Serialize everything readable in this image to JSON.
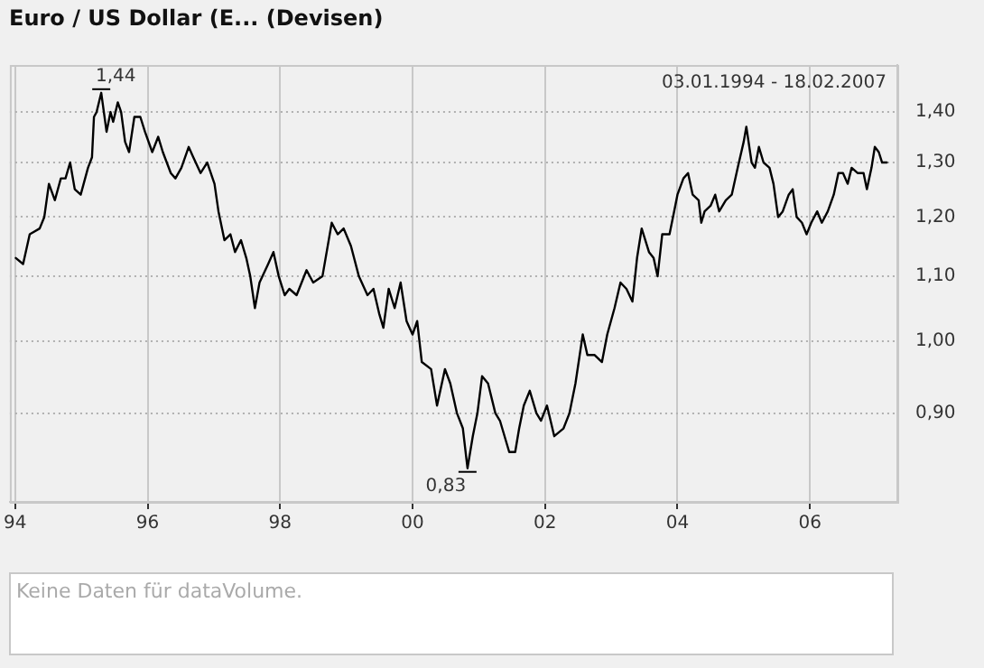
{
  "chart_data": {
    "type": "line",
    "title": "Euro / US Dollar (E... (Devisen)",
    "log": "y",
    "grid": true,
    "legend": false,
    "marker": "none",
    "line_style": "solid",
    "xlim": [
      1993.92,
      2007.32
    ],
    "xticks": [
      {
        "value": 1994,
        "label": "94"
      },
      {
        "value": 1996,
        "label": "96"
      },
      {
        "value": 1998,
        "label": "98"
      },
      {
        "value": 2000,
        "label": "00"
      },
      {
        "value": 2002,
        "label": "02"
      },
      {
        "value": 2004,
        "label": "04"
      },
      {
        "value": 2006,
        "label": "06"
      }
    ],
    "ylim": [
      0.79,
      1.5
    ],
    "yticks": [
      {
        "value": 0.9,
        "label": "0,90"
      },
      {
        "value": 1.0,
        "label": "1,00"
      },
      {
        "value": 1.1,
        "label": "1,10"
      },
      {
        "value": 1.2,
        "label": "1,20"
      },
      {
        "value": 1.3,
        "label": "1,30"
      },
      {
        "value": 1.4,
        "label": "1,40"
      }
    ],
    "series": [
      {
        "color": "#000000",
        "x": [
          1994.01,
          1994.12,
          1994.22,
          1994.37,
          1994.44,
          1994.51,
          1994.6,
          1994.69,
          1994.76,
          1994.83,
          1994.9,
          1994.99,
          1995.1,
          1995.16,
          1995.19,
          1995.23,
          1995.3,
          1995.38,
          1995.44,
          1995.48,
          1995.55,
          1995.6,
          1995.66,
          1995.72,
          1995.8,
          1995.89,
          1995.96,
          1996.07,
          1996.16,
          1996.23,
          1996.35,
          1996.42,
          1996.51,
          1996.62,
          1996.69,
          1996.8,
          1996.9,
          1997.01,
          1997.07,
          1997.16,
          1997.25,
          1997.32,
          1997.41,
          1997.49,
          1997.55,
          1997.62,
          1997.69,
          1997.82,
          1997.9,
          1997.98,
          1998.07,
          1998.14,
          1998.25,
          1998.4,
          1998.5,
          1998.64,
          1998.78,
          1998.87,
          1998.96,
          1999.07,
          1999.19,
          1999.32,
          1999.41,
          1999.5,
          1999.56,
          1999.64,
          1999.73,
          1999.82,
          1999.91,
          2000.0,
          2000.07,
          2000.14,
          2000.28,
          2000.37,
          2000.49,
          2000.57,
          2000.67,
          2000.76,
          2000.83,
          2000.91,
          2000.98,
          2001.05,
          2001.14,
          2001.25,
          2001.32,
          2001.46,
          2001.55,
          2001.61,
          2001.68,
          2001.77,
          2001.87,
          2001.94,
          2002.03,
          2002.14,
          2002.28,
          2002.37,
          2002.46,
          2002.57,
          2002.64,
          2002.75,
          2002.86,
          2002.94,
          2003.05,
          2003.14,
          2003.23,
          2003.32,
          2003.39,
          2003.46,
          2003.57,
          2003.64,
          2003.7,
          2003.77,
          2003.88,
          2003.95,
          2004.0,
          2004.09,
          2004.16,
          2004.23,
          2004.32,
          2004.36,
          2004.41,
          2004.5,
          2004.57,
          2004.63,
          2004.73,
          2004.82,
          2004.91,
          2005.0,
          2005.04,
          2005.12,
          2005.17,
          2005.23,
          2005.3,
          2005.39,
          2005.45,
          2005.52,
          2005.59,
          2005.68,
          2005.74,
          2005.8,
          2005.88,
          2005.95,
          2006.02,
          2006.11,
          2006.18,
          2006.27,
          2006.36,
          2006.43,
          2006.5,
          2006.57,
          2006.63,
          2006.72,
          2006.81,
          2006.86,
          2006.93,
          2006.98,
          2007.04,
          2007.09,
          2007.16
        ],
        "values": [
          1.13,
          1.12,
          1.17,
          1.18,
          1.2,
          1.26,
          1.23,
          1.27,
          1.27,
          1.3,
          1.25,
          1.24,
          1.29,
          1.31,
          1.39,
          1.4,
          1.44,
          1.36,
          1.4,
          1.38,
          1.42,
          1.4,
          1.34,
          1.32,
          1.39,
          1.39,
          1.36,
          1.32,
          1.35,
          1.32,
          1.28,
          1.27,
          1.29,
          1.33,
          1.31,
          1.28,
          1.3,
          1.26,
          1.21,
          1.16,
          1.17,
          1.14,
          1.16,
          1.13,
          1.1,
          1.05,
          1.09,
          1.12,
          1.14,
          1.1,
          1.07,
          1.08,
          1.07,
          1.11,
          1.09,
          1.1,
          1.19,
          1.17,
          1.18,
          1.15,
          1.1,
          1.07,
          1.08,
          1.04,
          1.02,
          1.08,
          1.05,
          1.09,
          1.03,
          1.01,
          1.03,
          0.97,
          0.96,
          0.91,
          0.96,
          0.94,
          0.9,
          0.88,
          0.83,
          0.87,
          0.9,
          0.95,
          0.94,
          0.9,
          0.89,
          0.85,
          0.85,
          0.88,
          0.91,
          0.93,
          0.9,
          0.89,
          0.91,
          0.87,
          0.88,
          0.9,
          0.94,
          1.01,
          0.98,
          0.98,
          0.97,
          1.01,
          1.05,
          1.09,
          1.08,
          1.06,
          1.13,
          1.18,
          1.14,
          1.13,
          1.1,
          1.17,
          1.17,
          1.21,
          1.24,
          1.27,
          1.28,
          1.24,
          1.23,
          1.19,
          1.21,
          1.22,
          1.24,
          1.21,
          1.23,
          1.24,
          1.29,
          1.34,
          1.37,
          1.3,
          1.29,
          1.33,
          1.3,
          1.29,
          1.26,
          1.2,
          1.21,
          1.24,
          1.25,
          1.2,
          1.19,
          1.17,
          1.19,
          1.21,
          1.19,
          1.21,
          1.24,
          1.28,
          1.28,
          1.26,
          1.29,
          1.28,
          1.28,
          1.25,
          1.29,
          1.33,
          1.32,
          1.3,
          1.3
        ]
      }
    ],
    "annotations": [
      "03.01.1994 - 18.02.2007",
      "Keine Daten für dataVolume.",
      {
        "text": "1,44",
        "x": 1995.3,
        "y": 1.44
      },
      {
        "text": "0,83",
        "x": 2000.83,
        "y": 0.83
      }
    ]
  }
}
